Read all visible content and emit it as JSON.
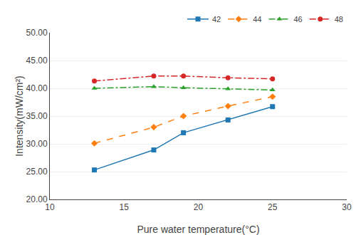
{
  "chart_data": {
    "type": "line",
    "xlabel": "Pure water temperature(°C)",
    "ylabel": "Intensity(mW/cm²)",
    "x": [
      13,
      17,
      19,
      22,
      25
    ],
    "series": [
      {
        "name": "42",
        "values": [
          25.3,
          28.9,
          32.0,
          34.3,
          36.7
        ],
        "marker": "square",
        "line_style": "solid"
      },
      {
        "name": "44",
        "values": [
          30.1,
          33.0,
          35.0,
          36.8,
          38.5
        ],
        "marker": "diamond",
        "line_style": "dash"
      },
      {
        "name": "46",
        "values": [
          40.0,
          40.3,
          40.1,
          39.9,
          39.7
        ],
        "marker": "triangle-up",
        "line_style": "dashdot"
      },
      {
        "name": "48",
        "values": [
          41.3,
          42.2,
          42.2,
          41.9,
          41.7
        ],
        "marker": "circle",
        "line_style": "dashdot"
      }
    ],
    "xlim": [
      10,
      30
    ],
    "ylim": [
      20.0,
      50.0
    ],
    "xticks": [
      10,
      15,
      20,
      25,
      30
    ],
    "yticks": [
      {
        "value": 20,
        "label": "20.00"
      },
      {
        "value": 25,
        "label": "25.00"
      },
      {
        "value": 30,
        "label": "30.00"
      },
      {
        "value": 35,
        "label": "35.00"
      },
      {
        "value": 40,
        "label": "40.00"
      },
      {
        "value": 45,
        "label": "45.00"
      },
      {
        "value": 50,
        "label": "50.00"
      }
    ],
    "grid": "y",
    "legend": "upper right"
  }
}
